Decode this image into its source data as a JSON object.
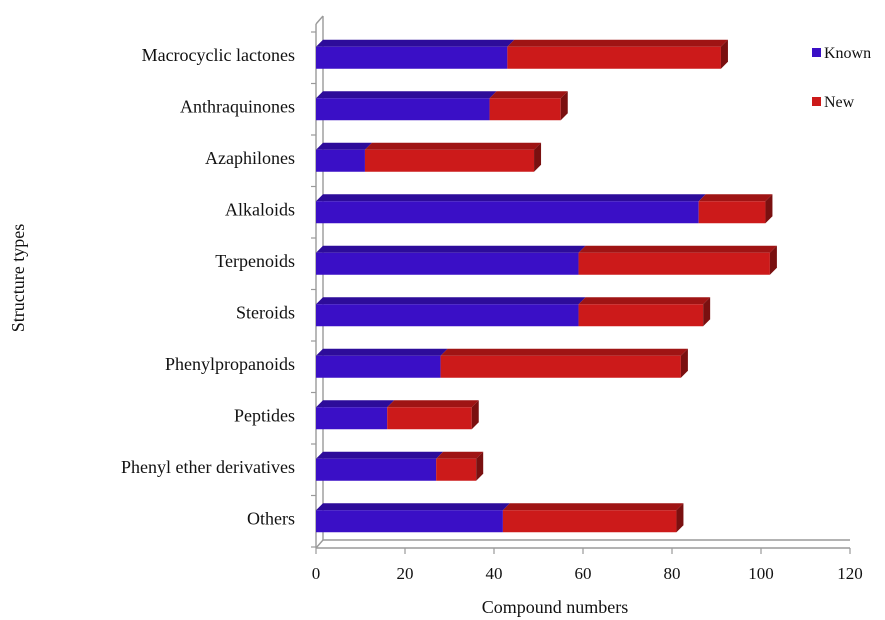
{
  "chart_data": {
    "type": "bar",
    "orientation": "horizontal",
    "stacked": true,
    "title": "",
    "xlabel": "Compound numbers",
    "ylabel": "Structure types",
    "xlim": [
      0,
      120
    ],
    "xticks": [
      0,
      20,
      40,
      60,
      80,
      100,
      120
    ],
    "grid": false,
    "legend_position": "top-right",
    "categories": [
      "Macrocyclic lactones",
      "Anthraquinones",
      "Azaphilones",
      "Alkaloids",
      "Terpenoids",
      "Steroids",
      "Phenylpropanoids",
      "Peptides",
      "Phenyl ether derivatives",
      "Others"
    ],
    "series": [
      {
        "name": "Known",
        "color": "#3a0fc6",
        "values": [
          43,
          39,
          11,
          86,
          59,
          59,
          28,
          16,
          27,
          42
        ]
      },
      {
        "name": "New",
        "color": "#cc1a1a",
        "values": [
          48,
          16,
          38,
          15,
          43,
          28,
          54,
          19,
          9,
          39
        ]
      }
    ]
  }
}
